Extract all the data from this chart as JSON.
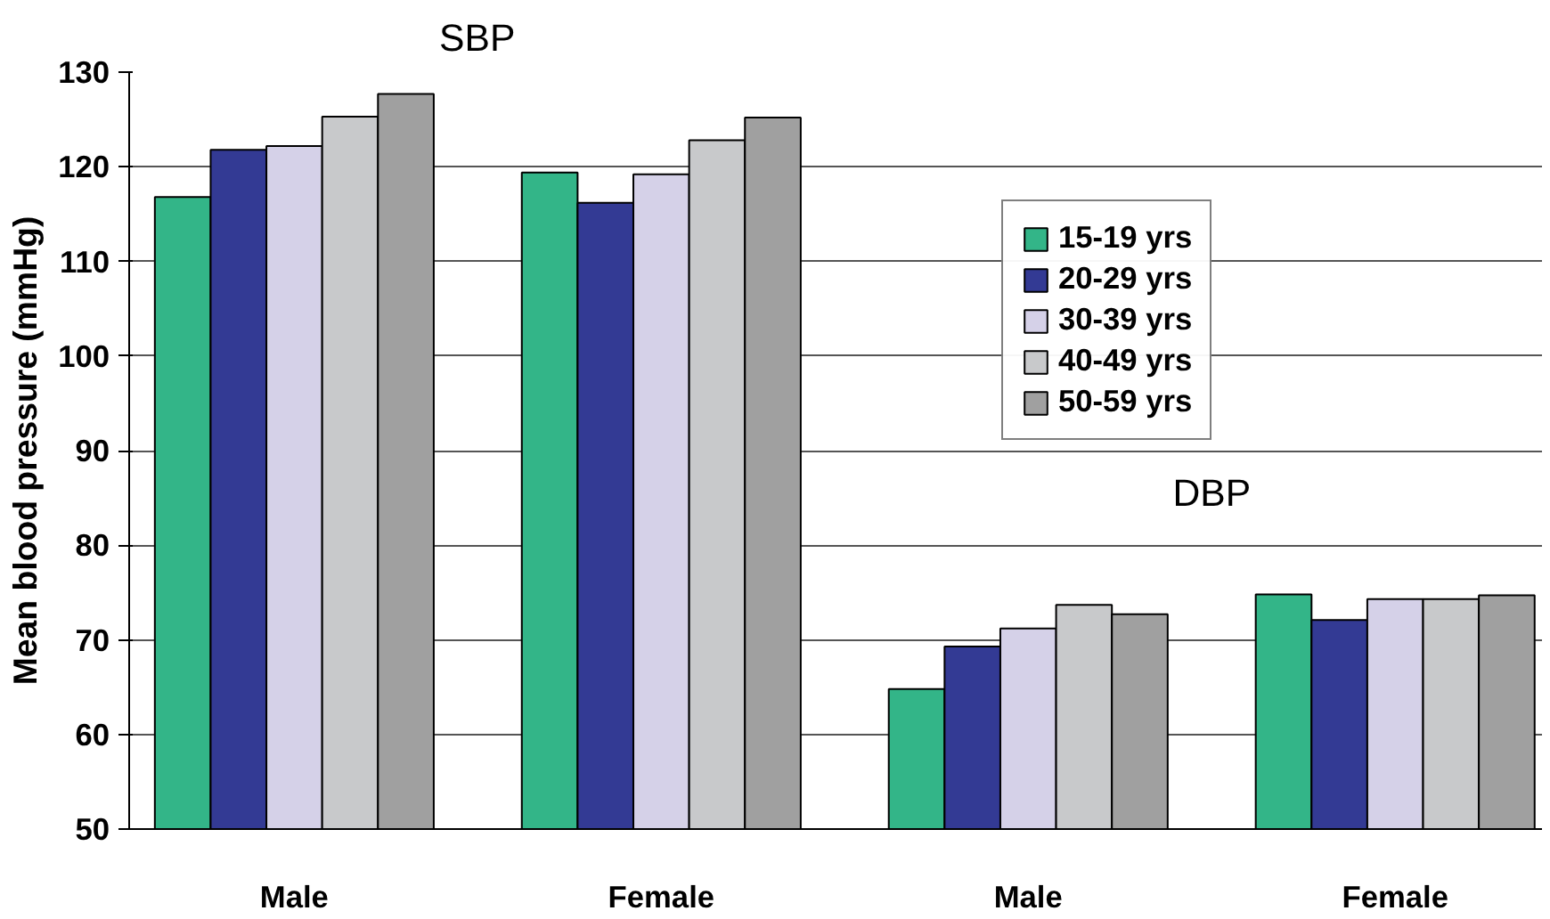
{
  "chart_data": {
    "type": "bar",
    "ylabel": "Mean blood pressure (mmHg)",
    "categories": [
      "Male",
      "Female",
      "Male",
      "Female"
    ],
    "series": [
      {
        "name": "15-19 yrs",
        "color": "#33b588",
        "values": [
          116.8,
          119.4,
          64.8,
          74.8
        ]
      },
      {
        "name": "20-29 yrs",
        "color": "#333a94",
        "values": [
          121.8,
          116.2,
          69.3,
          72.1
        ]
      },
      {
        "name": "30-39 yrs",
        "color": "#d5d1e8",
        "values": [
          122.2,
          119.2,
          71.2,
          74.3
        ]
      },
      {
        "name": "40-49 yrs",
        "color": "#c8c9cb",
        "values": [
          125.3,
          122.8,
          73.7,
          74.3
        ]
      },
      {
        "name": "50-59 yrs",
        "color": "#a0a0a0",
        "values": [
          127.7,
          125.2,
          72.7,
          74.7
        ]
      }
    ],
    "annotations": [
      "SBP",
      "DBP"
    ],
    "ylim": [
      50,
      130
    ],
    "yticks": [
      50,
      60,
      70,
      80,
      90,
      100,
      110,
      120,
      130
    ],
    "grid": "y",
    "legend": "top right"
  }
}
